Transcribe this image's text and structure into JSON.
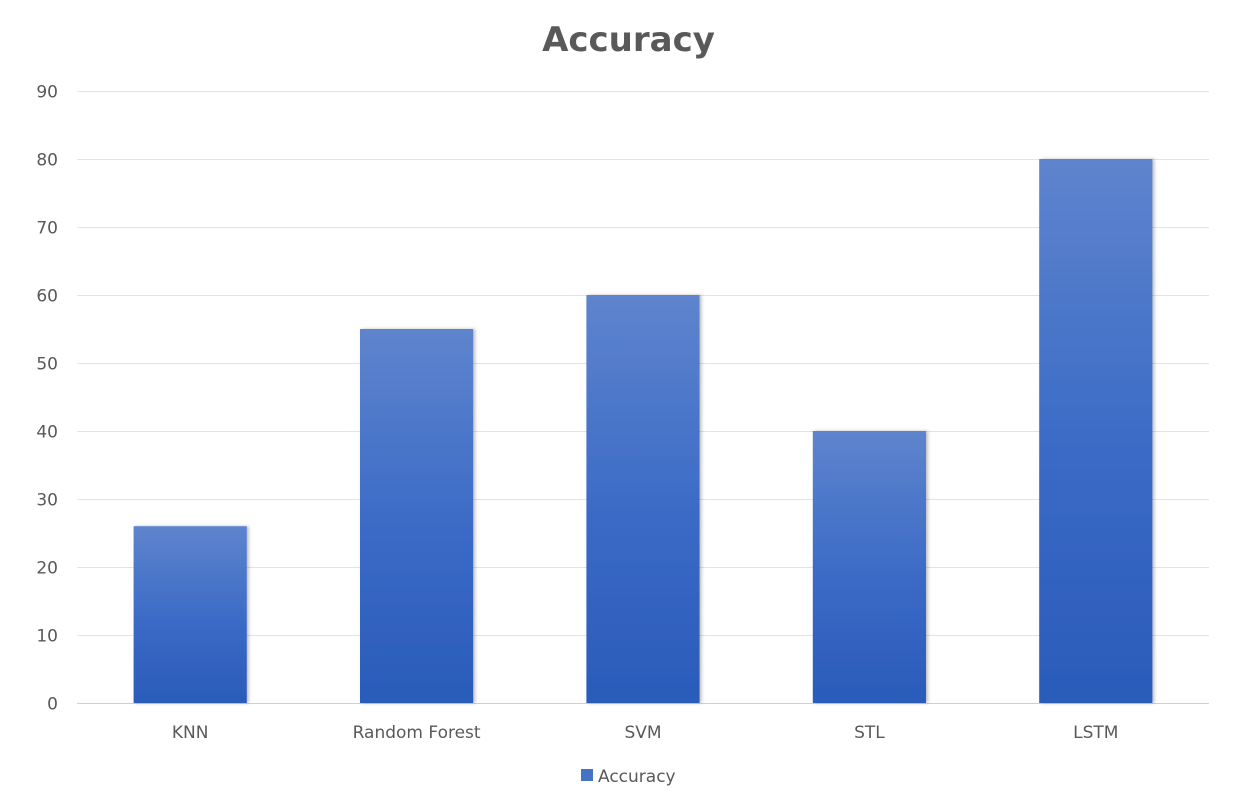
{
  "chart_data": {
    "type": "bar",
    "title": "Accuracy",
    "categories": [
      "KNN",
      "Random Forest",
      "SVM",
      "STL",
      "LSTM"
    ],
    "series": [
      {
        "name": "Accuracy",
        "values": [
          26,
          55,
          60,
          40,
          80
        ],
        "color": "#4472C4"
      }
    ],
    "ylim": [
      0,
      90
    ],
    "yticks": [
      0,
      10,
      20,
      30,
      40,
      50,
      60,
      70,
      80,
      90
    ],
    "grid": true,
    "legend": "bottom"
  }
}
